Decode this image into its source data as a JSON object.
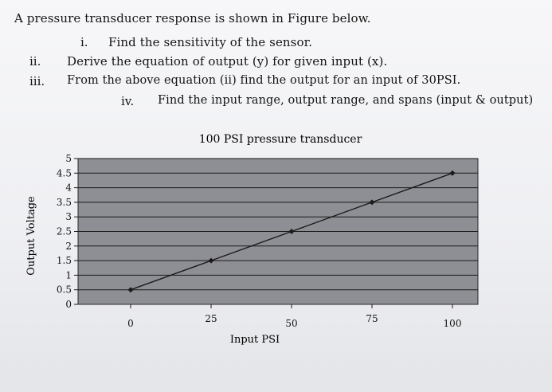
{
  "question": {
    "intro": "A pressure transducer response is shown in Figure below.",
    "items": [
      {
        "num": "i.",
        "text": "Find the sensitivity of the sensor."
      },
      {
        "num": "ii.",
        "text": "Derive the equation of output (y) for given input (x)."
      },
      {
        "num": "iii.",
        "text": "From the above equation (ii) find the output for an input of 30PSI."
      },
      {
        "num": "iv.",
        "text": "Find the input range, output range, and spans (input & output)"
      }
    ]
  },
  "chart_data": {
    "type": "line",
    "title": "100 PSI pressure transducer",
    "xlabel": "Input PSI",
    "ylabel": "Output Voltage",
    "x": [
      0,
      25,
      50,
      75,
      100
    ],
    "series": [
      {
        "values": [
          0.5,
          1.5,
          2.5,
          3.5,
          4.5
        ]
      }
    ],
    "xticks": [
      "0",
      "25",
      "50",
      "75",
      "100"
    ],
    "yticks": [
      "0",
      "0.5",
      "1",
      "1.5",
      "2",
      "2.5",
      "3",
      "3.5",
      "4",
      "4.5",
      "5"
    ],
    "ylim": [
      0,
      5
    ],
    "xlim": [
      0,
      100
    ],
    "grid": true,
    "colors": {
      "plot_bg": "#8e8e95",
      "line": "#1a1a1a",
      "grid": "#1a1a1a"
    }
  }
}
